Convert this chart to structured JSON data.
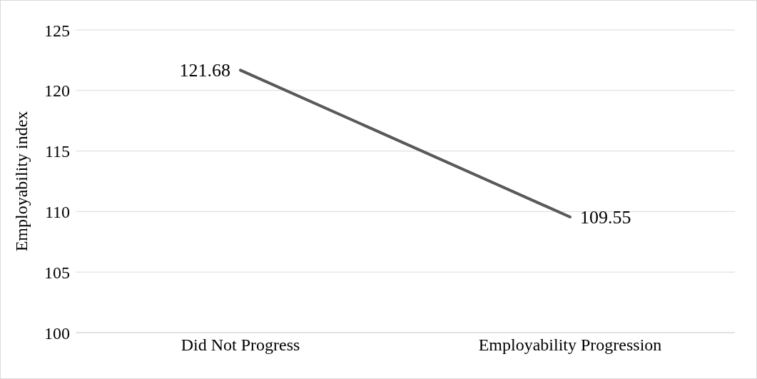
{
  "chart_data": {
    "type": "line",
    "ylabel": "Employability index",
    "categories": [
      "Did Not Progress",
      "Employability Progression"
    ],
    "series": [
      {
        "color": "#595959",
        "values": [
          121.68,
          109.55
        ]
      }
    ],
    "ylim": [
      100,
      125
    ],
    "yticks": [
      100,
      105,
      110,
      115,
      120,
      125
    ],
    "grid": "y",
    "marker": "none",
    "line_style": "solid",
    "data_labels": true
  }
}
